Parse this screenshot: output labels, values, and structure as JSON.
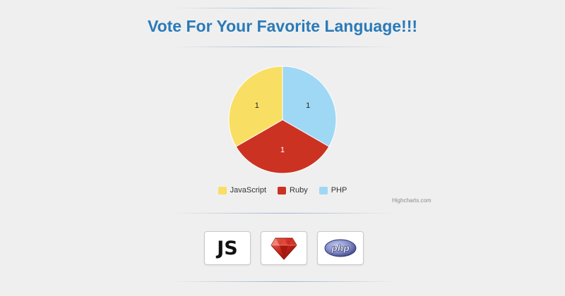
{
  "page": {
    "title": "Vote For Your Favorite Language!!!",
    "credits": "Highcharts.com"
  },
  "colors": {
    "title": "#2a7ab8",
    "background": "#efefef",
    "javascript": "#f8df64",
    "ruby": "#cc3222",
    "php": "#9fd8f5"
  },
  "chart_data": {
    "type": "pie",
    "title": "",
    "categories": [
      "JavaScript",
      "Ruby",
      "PHP"
    ],
    "values": [
      1,
      1,
      1
    ],
    "data_labels": [
      "1",
      "1",
      "1"
    ],
    "colors": [
      "#f8df64",
      "#cc3222",
      "#9fd8f5"
    ],
    "legend": "bottom-center"
  },
  "vote_buttons": [
    {
      "name": "javascript",
      "label": "JS",
      "icon": "javascript-logo-icon"
    },
    {
      "name": "ruby",
      "icon": "ruby-gem-logo-icon"
    },
    {
      "name": "php",
      "label": "php",
      "icon": "php-logo-icon"
    }
  ]
}
